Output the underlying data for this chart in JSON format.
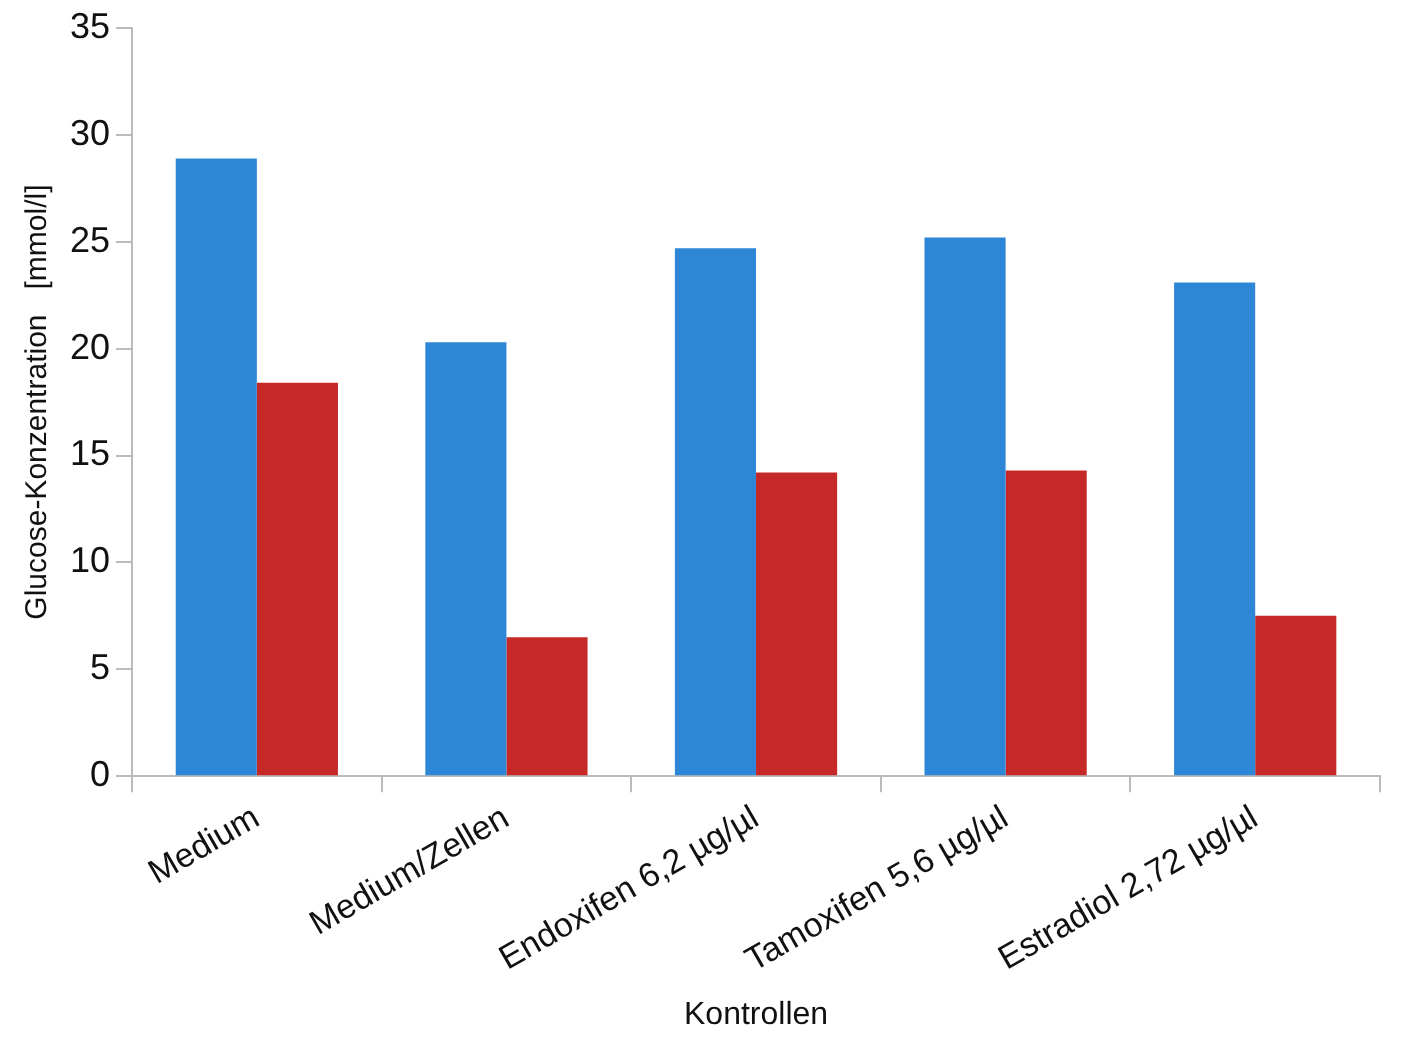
{
  "chart_data": {
    "type": "bar",
    "xlabel": "Kontrollen",
    "ylabel": "Glucose-Konzentration   [mmol/l]",
    "categories": [
      "Medium",
      "Medium/Zellen",
      "Endoxifen 6,2 µg/µl",
      "Tamoxifen 5,6 µg/µl",
      "Estradiol 2,72 µg/µl"
    ],
    "series": [
      {
        "color": "#2e86d6",
        "values": [
          28.9,
          20.3,
          24.7,
          25.2,
          23.1
        ]
      },
      {
        "color": "#c62828",
        "values": [
          18.4,
          6.5,
          14.2,
          14.3,
          7.5
        ]
      }
    ],
    "ylim": [
      0,
      35
    ],
    "yticks": [
      0,
      5,
      10,
      15,
      20,
      25,
      30,
      35
    ],
    "grid": false,
    "legend": false
  }
}
